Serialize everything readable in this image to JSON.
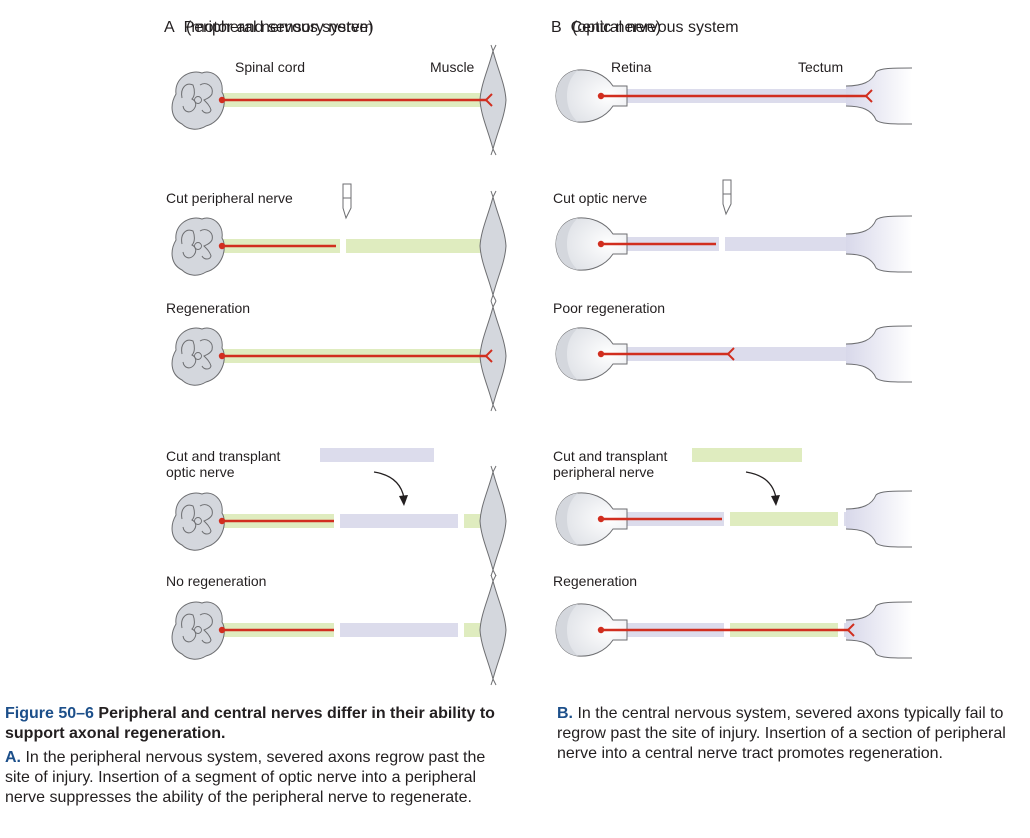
{
  "panels": {
    "a": {
      "letter": "A",
      "title": "Peripheral nervous system",
      "subtitle": "(motor and sensory nerve)",
      "label_source": "Spinal cord",
      "label_target": "Muscle"
    },
    "b": {
      "letter": "B",
      "title": "Central nervous system",
      "subtitle": "(optic nerve)",
      "label_source": "Retina",
      "label_target": "Tectum"
    }
  },
  "rows": {
    "a": [
      "Cut peripheral nerve",
      "Regeneration",
      "Cut and transplant\noptic nerve",
      "No regeneration"
    ],
    "b": [
      "Cut optic nerve",
      "Poor regeneration",
      "Cut and transplant\nperipheral nerve",
      "Regeneration"
    ]
  },
  "caption": {
    "figure_number": "Figure 50–6",
    "figure_title": "Peripheral and central nerves differ in their ability to support axonal regeneration.",
    "part_a_letter": "A.",
    "part_a_text": "In the peripheral nervous system, severed axons regrow past the site of injury. Insertion of a segment of optic nerve into a peripheral nerve suppresses the ability of the peripheral nerve to regenerate.",
    "part_b_letter": "B.",
    "part_b_text": "In the central nervous system, severed axons typically fail to regrow past the site of injury. Insertion of a section of peripheral nerve into a central nerve tract promotes regeneration."
  },
  "colors": {
    "peripheral_nerve": "#dfecbf",
    "optic_nerve": "#dcdcec",
    "axon": "#d12e1f",
    "tissue_gray": "#d4d7dd",
    "outline": "#6d6e71"
  }
}
